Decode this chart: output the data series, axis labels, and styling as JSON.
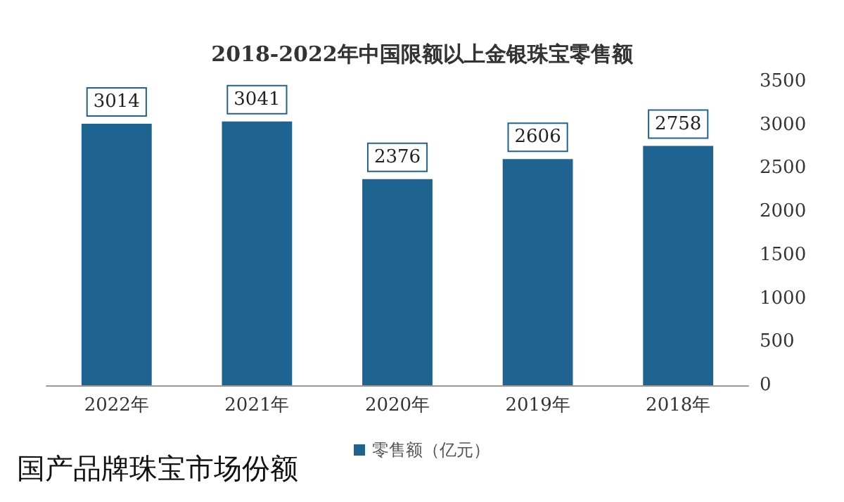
{
  "chart_data": {
    "type": "bar",
    "title": "2018-2022年中国限额以上金银珠宝零售额",
    "categories": [
      "2022年",
      "2021年",
      "2020年",
      "2019年",
      "2018年"
    ],
    "series": [
      {
        "name": "零售额（亿元）",
        "color": "#1f6391",
        "values": [
          3014,
          3041,
          2376,
          2606,
          2758
        ]
      }
    ],
    "ylim": [
      0,
      3500
    ],
    "yticks": [
      0,
      500,
      1000,
      1500,
      2000,
      2500,
      3000,
      3500
    ],
    "data_labels": true,
    "legend": "bottom",
    "grid": false,
    "annotations": [
      "国产品牌珠宝市场份额"
    ]
  }
}
